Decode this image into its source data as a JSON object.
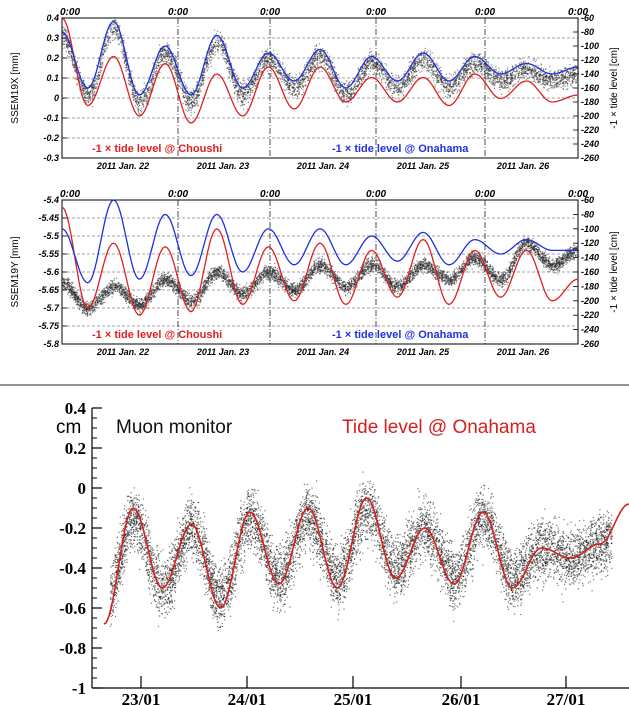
{
  "chart_data": [
    {
      "type": "scatter",
      "ylabel": "SSEM19X [mm]",
      "y2label": "-1 × tide level [cm]",
      "ylim": [
        -0.3,
        0.4
      ],
      "y2lim": [
        -260,
        -60
      ],
      "yticks": [
        "0.4",
        "0.3",
        "0.2",
        "0.1",
        "0",
        "-0.1",
        "-0.2",
        "-0.3"
      ],
      "y2ticks": [
        "-60",
        "-80",
        "-100",
        "-120",
        "-140",
        "-160",
        "-180",
        "-200",
        "-220",
        "-240",
        "-260"
      ],
      "top_time_labels": [
        "0:00",
        "0:00",
        "0:00",
        "0:00",
        "0:00",
        "0:00"
      ],
      "date_labels": [
        "2011 Jan. 22",
        "2011 Jan. 23",
        "2011 Jan. 24",
        "2011 Jan. 25",
        "2011 Jan. 26"
      ],
      "grid": true,
      "series": [
        {
          "name": "-1 × tide level @ Choushi",
          "color": "#e02020",
          "kind": "line",
          "x": [
            0.0,
            0.5,
            1.0,
            1.5,
            2.0,
            2.5,
            3.0,
            3.5,
            4.0,
            4.5,
            5.0,
            5.5,
            6.0,
            6.5,
            7.0,
            7.5,
            8.0,
            8.5,
            9.0,
            9.5,
            10.0
          ],
          "y": [
            -60,
            -185,
            -115,
            -200,
            -125,
            -210,
            -140,
            -200,
            -130,
            -190,
            -130,
            -180,
            -145,
            -180,
            -145,
            -185,
            -140,
            -175,
            -150,
            -180,
            -170
          ]
        },
        {
          "name": "-1 × tide level @ Onahama",
          "color": "#2030e0",
          "kind": "line",
          "x": [
            0.0,
            0.5,
            1.0,
            1.5,
            2.0,
            2.5,
            3.0,
            3.5,
            4.0,
            4.5,
            5.0,
            5.5,
            6.0,
            6.5,
            7.0,
            7.5,
            8.0,
            8.5,
            9.0,
            9.5,
            10.0
          ],
          "y": [
            -80,
            -160,
            -65,
            -170,
            -100,
            -170,
            -85,
            -160,
            -110,
            -150,
            -105,
            -160,
            -115,
            -150,
            -110,
            -150,
            -115,
            -140,
            -125,
            -140,
            -130
          ]
        }
      ],
      "points_color": "#222222"
    },
    {
      "type": "scatter",
      "ylabel": "SSEM19Y [mm]",
      "y2label": "-1 × tide level [cm]",
      "ylim": [
        -5.8,
        -5.4
      ],
      "y2lim": [
        -260,
        -60
      ],
      "yticks": [
        "-5.4",
        "-5.45",
        "-5.5",
        "-5.55",
        "-5.6",
        "-5.65",
        "-5.7",
        "-5.75",
        "-5.8"
      ],
      "y2ticks": [
        "-60",
        "-80",
        "-100",
        "-120",
        "-140",
        "-160",
        "-180",
        "-200",
        "-220",
        "-240",
        "-260"
      ],
      "top_time_labels": [
        "0:00",
        "0:00",
        "0:00",
        "0:00",
        "0:00",
        "0:00"
      ],
      "date_labels": [
        "2011 Jan. 22",
        "2011 Jan. 23",
        "2011 Jan. 24",
        "2011 Jan. 25",
        "2011 Jan. 26"
      ],
      "grid": true,
      "series": [
        {
          "name": "-1 × tide level @ Choushi",
          "color": "#e02020",
          "kind": "line",
          "x": [
            0.0,
            0.5,
            1.0,
            1.5,
            2.0,
            2.5,
            3.0,
            3.5,
            4.0,
            4.5,
            5.0,
            5.5,
            6.0,
            6.5,
            7.0,
            7.5,
            8.0,
            8.5,
            9.0,
            9.5,
            10.0
          ],
          "y": [
            -70,
            -210,
            -120,
            -220,
            -125,
            -215,
            -100,
            -205,
            -125,
            -200,
            -120,
            -205,
            -130,
            -195,
            -115,
            -205,
            -130,
            -195,
            -130,
            -200,
            -170
          ]
        },
        {
          "name": "-1 × tide level @ Onahama",
          "color": "#2030e0",
          "kind": "line",
          "x": [
            0.0,
            0.5,
            1.0,
            1.5,
            2.0,
            2.5,
            3.0,
            3.5,
            4.0,
            4.5,
            5.0,
            5.5,
            6.0,
            6.5,
            7.0,
            7.5,
            8.0,
            8.5,
            9.0,
            9.5,
            10.0
          ],
          "y": [
            -100,
            -175,
            -60,
            -170,
            -80,
            -165,
            -80,
            -160,
            -100,
            -150,
            -100,
            -150,
            -110,
            -145,
            -105,
            -150,
            -115,
            -135,
            -115,
            -130,
            -130
          ]
        },
        {
          "name": "SSEM19Y",
          "color": "#111111",
          "kind": "band",
          "x": [
            0.0,
            0.5,
            1.0,
            1.5,
            2.0,
            2.5,
            3.0,
            3.5,
            4.0,
            4.5,
            5.0,
            5.5,
            6.0,
            6.5,
            7.0,
            7.5,
            8.0,
            8.5,
            9.0,
            9.5,
            10.0
          ],
          "y": [
            -5.63,
            -5.7,
            -5.64,
            -5.69,
            -5.62,
            -5.68,
            -5.6,
            -5.66,
            -5.6,
            -5.65,
            -5.58,
            -5.64,
            -5.58,
            -5.64,
            -5.58,
            -5.62,
            -5.56,
            -5.62,
            -5.52,
            -5.58,
            -5.54
          ]
        }
      ]
    },
    {
      "type": "scatter",
      "legend": [
        "Muon monitor",
        "Tide level @ Onahama"
      ],
      "unit": "cm",
      "ylim": [
        -1.0,
        0.4
      ],
      "yticks": [
        "0.4",
        "0.2",
        "0",
        "-0.2",
        "-0.4",
        "-0.6",
        "-0.8",
        "-1"
      ],
      "x_labels": [
        "23/01",
        "24/01",
        "25/01",
        "26/01",
        "27/01"
      ],
      "grid": false,
      "series": [
        {
          "name": "Tide level @ Onahama",
          "color": "#d42020",
          "kind": "line",
          "x": [
            0.0,
            0.25,
            0.5,
            0.75,
            1.0,
            1.25,
            1.5,
            1.75,
            2.0,
            2.25,
            2.5,
            2.75,
            3.0,
            3.25,
            3.5,
            3.75,
            4.0,
            4.25,
            4.5
          ],
          "y": [
            -0.68,
            -0.1,
            -0.5,
            -0.18,
            -0.6,
            -0.12,
            -0.48,
            -0.1,
            -0.5,
            -0.05,
            -0.45,
            -0.2,
            -0.48,
            -0.12,
            -0.5,
            -0.3,
            -0.35,
            -0.28,
            -0.08
          ]
        },
        {
          "name": "Muon monitor",
          "color": "#111111",
          "kind": "band",
          "x": [
            0.0,
            0.25,
            0.5,
            0.75,
            1.0,
            1.25,
            1.5,
            1.75,
            2.0,
            2.25,
            2.5,
            2.75,
            3.0,
            3.25,
            3.5,
            3.75,
            4.0,
            4.25,
            4.5
          ],
          "y": [
            -0.6,
            -0.15,
            -0.5,
            -0.2,
            -0.55,
            -0.15,
            -0.45,
            -0.15,
            -0.45,
            -0.1,
            -0.4,
            -0.2,
            -0.45,
            -0.15,
            -0.45,
            -0.3,
            -0.35,
            -0.28,
            -0.15
          ]
        }
      ]
    }
  ]
}
